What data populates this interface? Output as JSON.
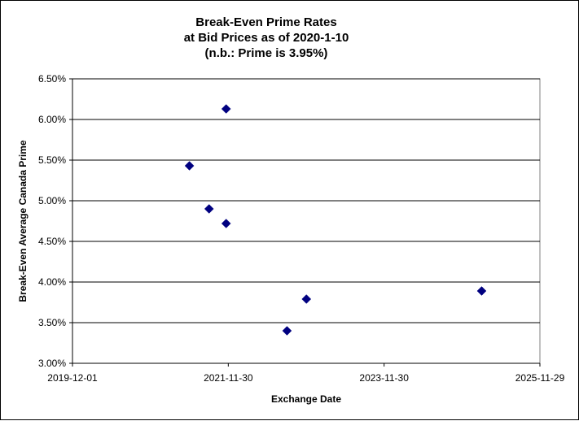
{
  "chart_data": {
    "type": "scatter",
    "title_lines": [
      "Break-Even Prime Rates",
      "at Bid Prices as of 2020-1-10",
      "(n.b.: Prime is 3.95%)"
    ],
    "xlabel": "Exchange Date",
    "ylabel": "Break-Even Average Canada Prime",
    "x_ticks": [
      "2019-12-01",
      "2021-11-30",
      "2023-11-30",
      "2025-11-29"
    ],
    "y_ticks": [
      "3.00%",
      "3.50%",
      "4.00%",
      "4.50%",
      "5.00%",
      "5.50%",
      "6.00%",
      "6.50%"
    ],
    "xlim": [
      "2019-12-01",
      "2025-11-29"
    ],
    "ylim": [
      3.0,
      6.5
    ],
    "grid": "horizontal",
    "marker_color": "#000080",
    "points": [
      {
        "x": "2021-06-01",
        "y": 5.43
      },
      {
        "x": "2021-09-01",
        "y": 4.9
      },
      {
        "x": "2021-11-20",
        "y": 6.13
      },
      {
        "x": "2021-11-20",
        "y": 4.72
      },
      {
        "x": "2022-09-01",
        "y": 3.4
      },
      {
        "x": "2022-12-01",
        "y": 3.79
      },
      {
        "x": "2025-03-01",
        "y": 3.89
      }
    ]
  }
}
